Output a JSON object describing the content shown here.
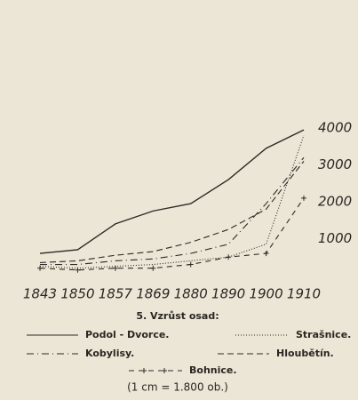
{
  "chart_data": {
    "type": "line",
    "title": "5. Vzrůst osad:",
    "note": "(1 cm = 1.800 ob.)",
    "categories": [
      "1843",
      "1850",
      "1857",
      "1869",
      "1880",
      "1890",
      "1900",
      "1910"
    ],
    "ylim": [
      0,
      4000
    ],
    "yticks": [
      1000,
      2000,
      3000,
      4000
    ],
    "series": [
      {
        "name": "Podol - Dvorce.",
        "color": "#2e2a26",
        "dash": "none",
        "values": [
          600,
          700,
          1400,
          1750,
          1950,
          2600,
          3450,
          3950
        ]
      },
      {
        "name": "Strašnice.",
        "color": "#2e2a26",
        "dash": "1 2",
        "values": [
          250,
          200,
          250,
          300,
          400,
          500,
          850,
          3800
        ]
      },
      {
        "name": "Kobylisy.",
        "color": "#2e2a26",
        "dash": "8 4 1 4",
        "values": [
          300,
          300,
          400,
          450,
          600,
          850,
          1950,
          3200
        ]
      },
      {
        "name": "Hloubětín.",
        "color": "#2e2a26",
        "dash": "7 4",
        "values": [
          350,
          400,
          550,
          650,
          900,
          1250,
          1800,
          3100
        ]
      },
      {
        "name": "Bohnice.",
        "color": "#2e2a26",
        "dash": "6 5",
        "marker": "+",
        "values": [
          200,
          150,
          200,
          200,
          300,
          500,
          600,
          2100
        ]
      }
    ]
  }
}
